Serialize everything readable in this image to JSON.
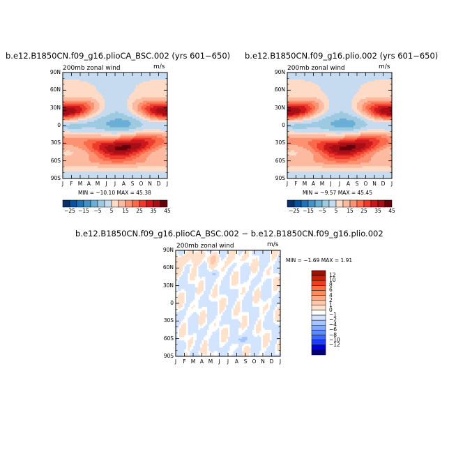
{
  "colors": {
    "full_field": [
      "#08306b",
      "#08519c",
      "#2171b5",
      "#4292c6",
      "#6baed6",
      "#9ecae1",
      "#c6dbef",
      "#fddbc7",
      "#fcbba1",
      "#fc9272",
      "#fb6a4a",
      "#ef3b2c",
      "#cb181d",
      "#a50f15",
      "#67000d"
    ],
    "diff_field": [
      "#000080",
      "#0000cd",
      "#1e3cff",
      "#3c64ff",
      "#5a8cff",
      "#82a8ff",
      "#a6c4ff",
      "#d2e4ff",
      "#ffffff",
      "#ffe1cc",
      "#ffc8aa",
      "#ffaa82",
      "#ff8c5a",
      "#ff6e3c",
      "#f03c1e",
      "#c81e0a",
      "#961400"
    ]
  },
  "chart_data": [
    {
      "type": "heatmap",
      "title": "b.e12.B1850CN.f09_g16.plioCA_BSC.002 (yrs 601−650)",
      "subtitle_left": "200mb zonal wind",
      "subtitle_right": "m/s",
      "stats": "MIN = −10.10 MAX =  45.38",
      "x_ticks": [
        "J",
        "F",
        "M",
        "A",
        "M",
        "J",
        "J",
        "A",
        "S",
        "O",
        "N",
        "D",
        "J"
      ],
      "y_ticks": [
        "90N",
        "60N",
        "30N",
        "0",
        "30S",
        "60S",
        "90S"
      ],
      "ylim": [
        -90,
        90
      ],
      "colorbar_labels": [
        "−25",
        "−15",
        "−5",
        "5",
        "15",
        "25",
        "35",
        "45"
      ],
      "min": -10.1,
      "max": 45.38
    },
    {
      "type": "heatmap",
      "title": "b.e12.B1850CN.f09_g16.plio.002 (yrs 601−650)",
      "subtitle_left": "200mb zonal wind",
      "subtitle_right": "m/s",
      "stats": "MIN = −9.57 MAX =  45.45",
      "x_ticks": [
        "J",
        "F",
        "M",
        "A",
        "M",
        "J",
        "J",
        "A",
        "S",
        "O",
        "N",
        "D",
        "J"
      ],
      "y_ticks": [
        "90N",
        "60N",
        "30N",
        "0",
        "30S",
        "60S",
        "90S"
      ],
      "ylim": [
        -90,
        90
      ],
      "colorbar_labels": [
        "−25",
        "−15",
        "−5",
        "5",
        "15",
        "25",
        "35",
        "45"
      ],
      "min": -9.57,
      "max": 45.45
    },
    {
      "type": "heatmap",
      "title": "b.e12.B1850CN.f09_g16.plioCA_BSC.002 − b.e12.B1850CN.f09_g16.plio.002",
      "subtitle_left": "200mb zonal wind",
      "subtitle_right": "m/s",
      "stats": "MIN =  −1.69 MAX =   1.91",
      "x_ticks": [
        "J",
        "F",
        "M",
        "A",
        "M",
        "J",
        "J",
        "A",
        "S",
        "O",
        "N",
        "D",
        "J"
      ],
      "y_ticks": [
        "90N",
        "60N",
        "30N",
        "0",
        "30S",
        "60S",
        "90S"
      ],
      "ylim": [
        -90,
        90
      ],
      "colorbar_labels": [
        "12",
        "10",
        "8",
        "6",
        "4",
        "2",
        "1",
        "0",
        "−1",
        "−2",
        "−4",
        "−6",
        "−8",
        "−10",
        "−12"
      ],
      "min": -1.69,
      "max": 1.91
    }
  ]
}
